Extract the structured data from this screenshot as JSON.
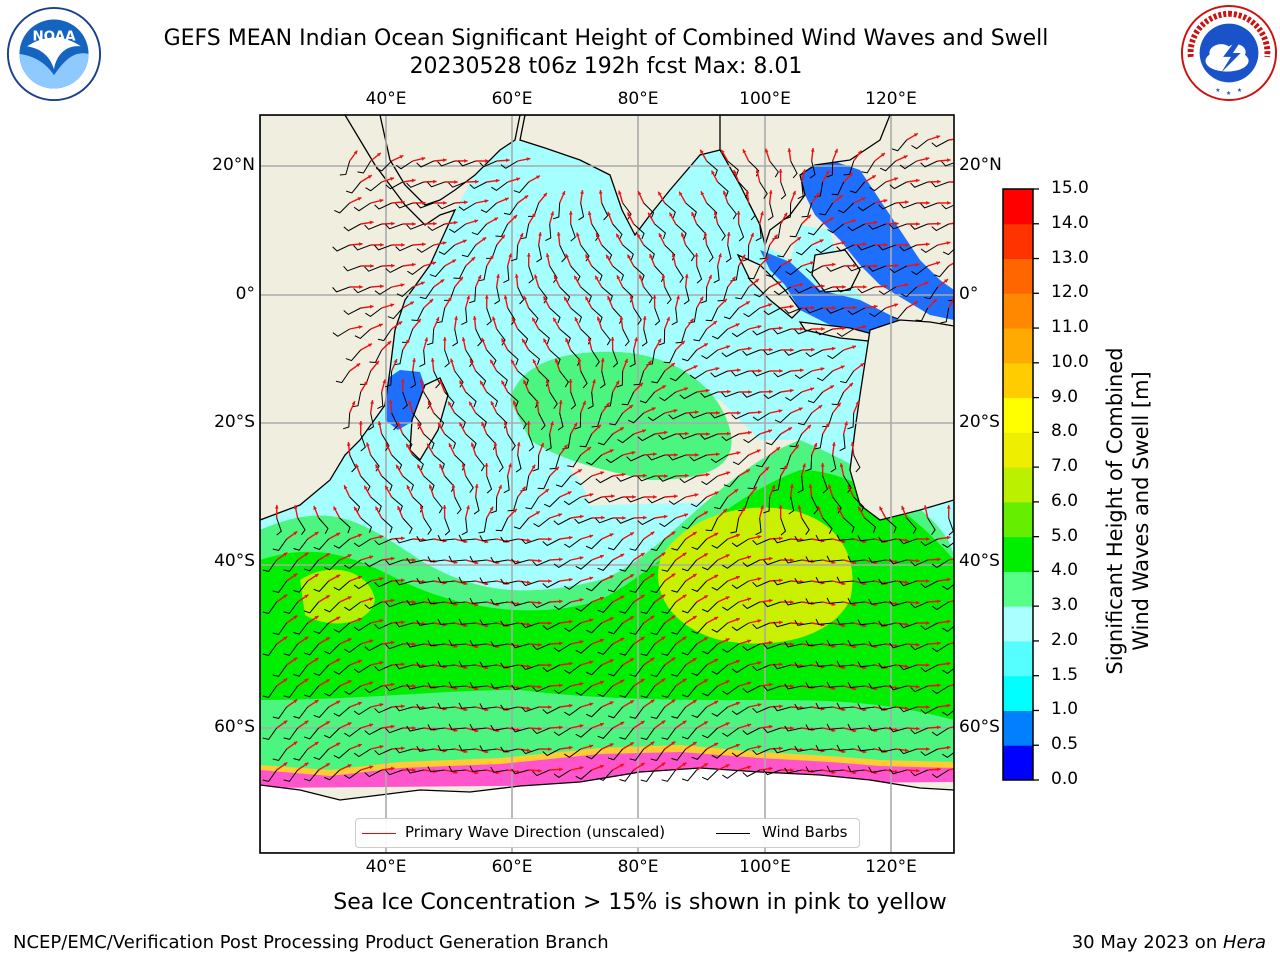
{
  "header": {
    "title_line1": "GEFS MEAN Indian Ocean Significant Height of Combined Wind Waves and Swell",
    "title_line2": "20230528 t06z 192h fcst   Max: 8.01"
  },
  "logos": {
    "left": {
      "icon": "noaa-logo",
      "text": "NOAA",
      "ring_text": "NATIONAL OCEANIC AND ATMOSPHERIC ADMINISTRATION · U.S. DEPARTMENT OF COMMERCE"
    },
    "right": {
      "icon": "nws-logo",
      "ring_text": "NATIONAL WEATHER SERVICE"
    }
  },
  "map": {
    "lon_labels": [
      "40°E",
      "60°E",
      "80°E",
      "100°E",
      "120°E"
    ],
    "lat_labels_left": [
      "20°N",
      "0°",
      "20°S",
      "40°S",
      "60°S"
    ],
    "lat_labels_right": [
      "20°N",
      "0°",
      "20°S",
      "40°S",
      "60°S"
    ],
    "land_color": "#efeedf",
    "ocean_palette": {
      "calm": "#3a86ff",
      "low": "#a6ffff",
      "mid": "#4cf57f",
      "high": "#00ee00",
      "peak": "#c8f000",
      "ice": "#ff55cc",
      "ice_edge": "#ffcc33",
      "wave_arrow": "#ee1111",
      "wind_barb": "#000000"
    }
  },
  "legend": {
    "wave_label": "Primary Wave Direction (unscaled)",
    "wave_color": "#ff0000",
    "wind_label": "Wind Barbs",
    "wind_color": "#000000"
  },
  "colorbar": {
    "label_line1": "Significant Height of Combined",
    "label_line2": "Wind Waves and Swell [m]",
    "ticks": [
      "0.0",
      "0.5",
      "1.0",
      "1.5",
      "2.0",
      "3.0",
      "4.0",
      "5.0",
      "6.0",
      "7.0",
      "8.0",
      "9.0",
      "10.0",
      "11.0",
      "12.0",
      "13.0",
      "14.0",
      "15.0"
    ],
    "colors": [
      "#0000ff",
      "#0080ff",
      "#00ffff",
      "#55ffff",
      "#aaffff",
      "#55ff88",
      "#00ee00",
      "#66ee00",
      "#bbf000",
      "#eeee00",
      "#ffff00",
      "#ffcc00",
      "#ffaa00",
      "#ff8800",
      "#ff6600",
      "#ff3300",
      "#ff0000"
    ]
  },
  "caption": "Sea Ice Concentration > 15% is shown in pink to yellow",
  "footer": {
    "left": "NCEP/EMC/Verification Post Processing Product Generation Branch",
    "right_prefix": "30 May 2023 on ",
    "right_machine": "Hera"
  }
}
